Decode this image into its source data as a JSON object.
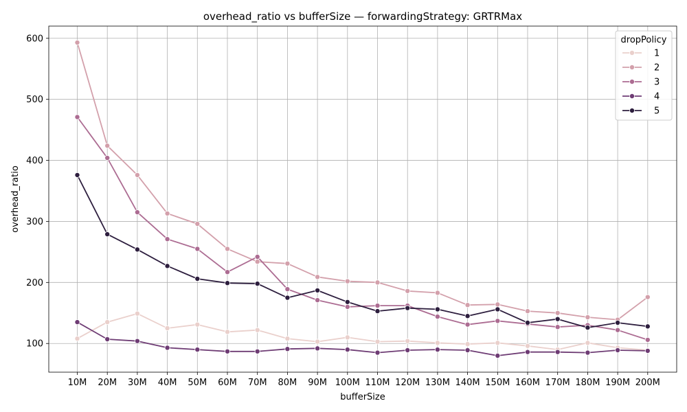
{
  "chart_data": {
    "type": "line",
    "title": "overhead_ratio vs bufferSize — forwardingStrategy: GRTRMax",
    "xlabel": "bufferSize",
    "ylabel": "overhead_ratio",
    "categories": [
      "10M",
      "20M",
      "30M",
      "40M",
      "50M",
      "60M",
      "70M",
      "80M",
      "90M",
      "100M",
      "110M",
      "120M",
      "130M",
      "140M",
      "150M",
      "160M",
      "170M",
      "180M",
      "190M",
      "200M"
    ],
    "ylim": [
      53,
      620
    ],
    "yticks": [
      "100",
      "200",
      "300",
      "400",
      "500",
      "600"
    ],
    "grid": true,
    "legend": {
      "title": "dropPolicy",
      "placement": "top-right"
    },
    "series": [
      {
        "name": "1",
        "color": "#ead0cc",
        "values": [
          108,
          135,
          149,
          125,
          131,
          119,
          122,
          108,
          103,
          110,
          103,
          104,
          101,
          99,
          101,
          96,
          90,
          101,
          93,
          89
        ]
      },
      {
        "name": "2",
        "color": "#d3a0ab",
        "values": [
          593,
          424,
          376,
          313,
          296,
          255,
          234,
          231,
          209,
          202,
          200,
          186,
          183,
          163,
          164,
          153,
          150,
          143,
          139,
          176
        ]
      },
      {
        "name": "3",
        "color": "#ac6c92",
        "values": [
          471,
          404,
          315,
          271,
          255,
          217,
          242,
          189,
          171,
          160,
          162,
          162,
          144,
          131,
          137,
          132,
          127,
          130,
          122,
          106
        ]
      },
      {
        "name": "4",
        "color": "#6e3c74",
        "values": [
          135,
          107,
          104,
          93,
          90,
          87,
          87,
          91,
          92,
          90,
          85,
          89,
          90,
          89,
          80,
          86,
          86,
          85,
          89,
          88
        ]
      },
      {
        "name": "5",
        "color": "#2d1e3e",
        "values": [
          376,
          279,
          254,
          227,
          206,
          199,
          198,
          175,
          187,
          168,
          153,
          158,
          156,
          145,
          156,
          134,
          140,
          126,
          134,
          128
        ]
      }
    ]
  }
}
